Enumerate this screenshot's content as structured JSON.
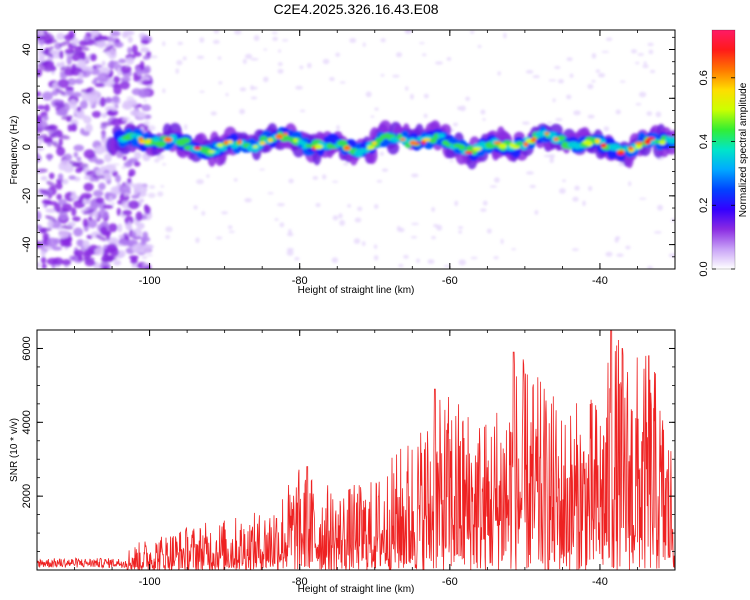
{
  "figure": {
    "title": "C2E4.2025.326.16.43.E08"
  },
  "chart_data": [
    {
      "type": "heatmap",
      "title": "C2E4.2025.326.16.43.E08",
      "xlabel": "Height of straight line (km)",
      "ylabel": "Frequency (Hz)",
      "xlim": [
        -115,
        -30
      ],
      "ylim": [
        -50,
        48
      ],
      "xticks": [
        -100,
        -80,
        -60,
        -40
      ],
      "yticks": [
        -40,
        -20,
        0,
        20,
        40
      ],
      "band_center_hz": 1.5,
      "band_start_km": -105,
      "noise_region_km": [
        -115,
        -103
      ],
      "colorbar": {
        "label": "Normalized spectral amplitude",
        "range": [
          0.0,
          0.75
        ],
        "ticks": [
          0.0,
          0.2,
          0.4,
          0.6
        ],
        "colors": [
          "#ffffff",
          "#c9a3f7",
          "#8a2be2",
          "#3300ff",
          "#0044ff",
          "#00aaff",
          "#00e6c8",
          "#33ee33",
          "#ccff00",
          "#ffdd00",
          "#ff7700",
          "#ff1a1a",
          "#ff1a66"
        ]
      }
    },
    {
      "type": "line",
      "xlabel": "Height of straight line (km)",
      "ylabel": "SNR (10 * v/v)",
      "xlim": [
        -115,
        -30
      ],
      "ylim": [
        0,
        6500
      ],
      "xticks": [
        -100,
        -80,
        -60,
        -40
      ],
      "yticks": [
        2000,
        4000,
        6000
      ],
      "color": "#ee2222",
      "envelope": [
        {
          "x": -115,
          "y": 300
        },
        {
          "x": -105,
          "y": 400
        },
        {
          "x": -100,
          "y": 900
        },
        {
          "x": -95,
          "y": 1200
        },
        {
          "x": -90,
          "y": 1400
        },
        {
          "x": -85,
          "y": 1600
        },
        {
          "x": -80,
          "y": 2800
        },
        {
          "x": -75,
          "y": 2200
        },
        {
          "x": -70,
          "y": 2500
        },
        {
          "x": -65,
          "y": 3800
        },
        {
          "x": -60,
          "y": 4900
        },
        {
          "x": -55,
          "y": 4200
        },
        {
          "x": -51,
          "y": 5900
        },
        {
          "x": -45,
          "y": 4500
        },
        {
          "x": -40,
          "y": 4800
        },
        {
          "x": -38,
          "y": 6500
        },
        {
          "x": -36,
          "y": 6000
        },
        {
          "x": -33,
          "y": 5800
        },
        {
          "x": -30,
          "y": 3200
        }
      ],
      "peaks": [
        {
          "x": -79,
          "y": 2800
        },
        {
          "x": -62,
          "y": 4900
        },
        {
          "x": -51.5,
          "y": 5900
        },
        {
          "x": -38.5,
          "y": 6500
        },
        {
          "x": -37,
          "y": 6000
        },
        {
          "x": -33.5,
          "y": 5800
        }
      ]
    }
  ]
}
